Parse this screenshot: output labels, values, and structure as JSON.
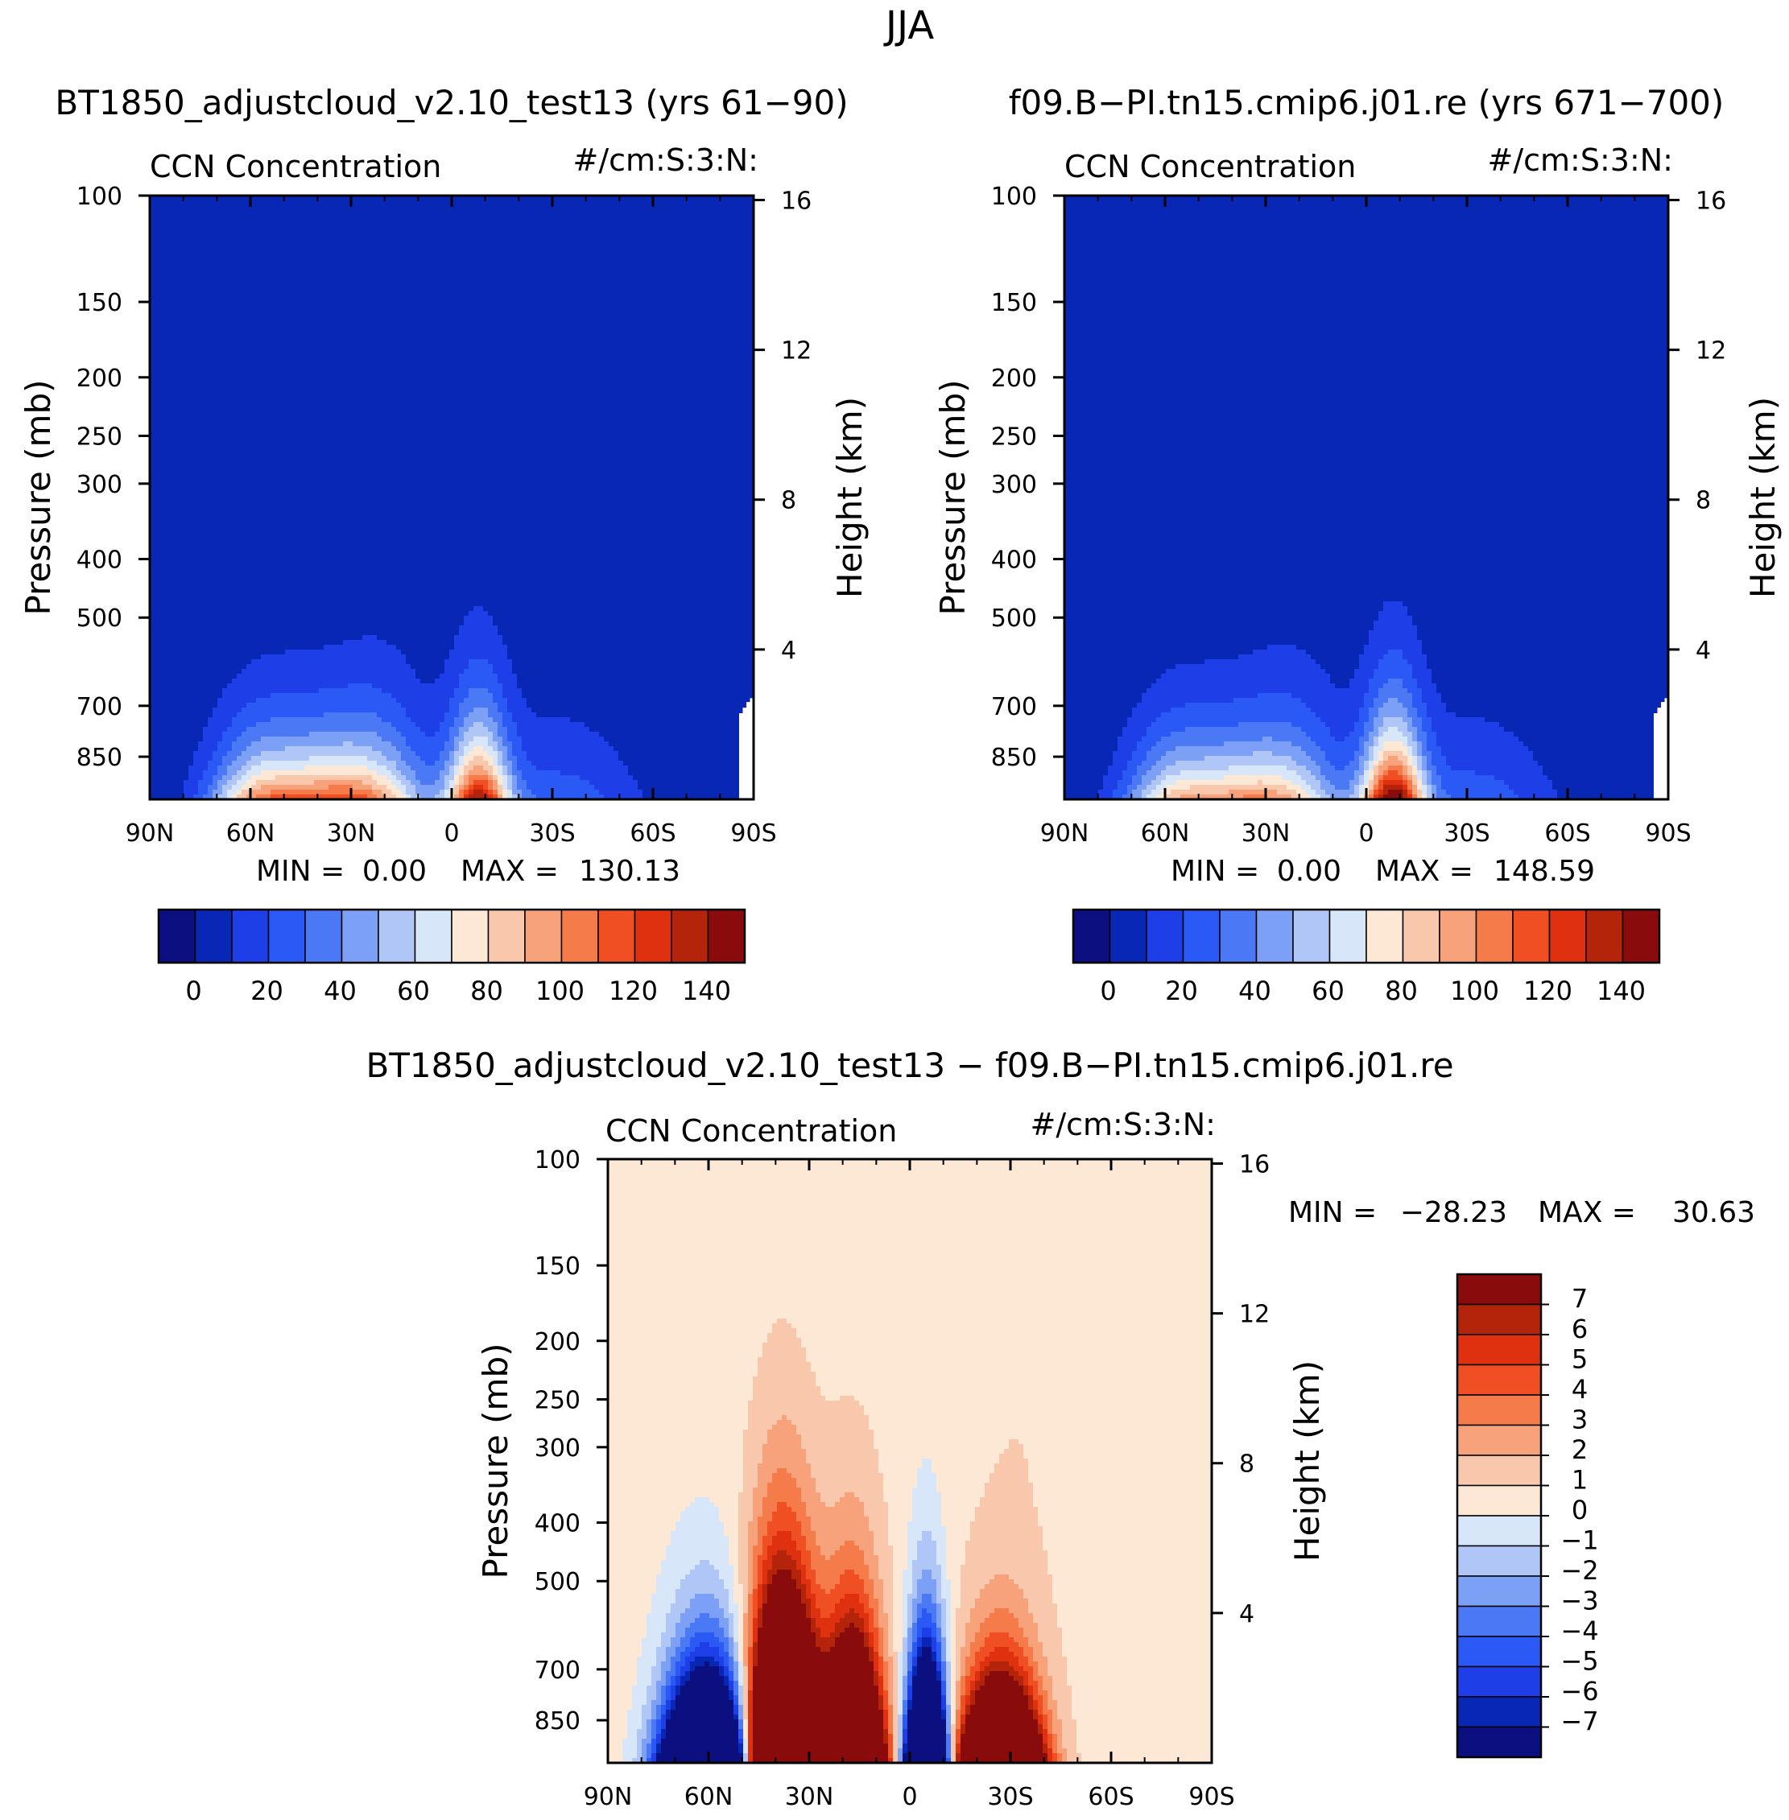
{
  "figure": {
    "title": "JJA"
  },
  "colors": {
    "seq_palette": [
      "#0b0f80",
      "#0727b4",
      "#1e3ee8",
      "#2b59f5",
      "#4b79f6",
      "#7da0f7",
      "#b0c6f7",
      "#d8e6f9",
      "#fde8d6",
      "#f9c7ab",
      "#f7a27a",
      "#f57c4a",
      "#f04e23",
      "#df3010",
      "#b3240b",
      "#8a0b0b"
    ],
    "diff_palette": [
      "#0b0f80",
      "#0727b4",
      "#1e3ee8",
      "#2b59f5",
      "#4b79f6",
      "#7da0f7",
      "#b0c6f7",
      "#d8e6f9",
      "#fde8d6",
      "#f9c7ab",
      "#f7a27a",
      "#f57c4a",
      "#f04e23",
      "#df3010",
      "#b3240b",
      "#8a0b0b"
    ]
  },
  "chart_data": [
    {
      "type": "heatmap",
      "panel": "top-left",
      "case_title": "BT1850_adjustcloud_v2.10_test13 (yrs 61−90)",
      "variable_label": "CCN Concentration",
      "units_label": "#/cm:S:3:N:",
      "ylabel": "Pressure (mb)",
      "y2label": "Height (km)",
      "x_ticks": [
        "90N",
        "60N",
        "30N",
        "0",
        "30S",
        "60S",
        "90S"
      ],
      "y_ticks": [
        "100",
        "150",
        "200",
        "250",
        "300",
        "400",
        "500",
        "700",
        "850"
      ],
      "y2_ticks": [
        "16",
        "12",
        "8",
        "4"
      ],
      "min_label": "MIN =",
      "min_value": "0.00",
      "max_label": "MAX =",
      "max_value": "130.13",
      "colorbar_labels": [
        "0",
        "20",
        "40",
        "60",
        "80",
        "100",
        "120",
        "140"
      ],
      "levels": [
        0,
        10,
        20,
        30,
        40,
        50,
        60,
        70,
        80,
        90,
        100,
        110,
        120,
        130,
        140
      ],
      "field_peaks": {
        "nh_peak_lat": 25,
        "nh_peak_value": 112,
        "sh_peak_lat": -8,
        "sh_peak_value": 130
      }
    },
    {
      "type": "heatmap",
      "panel": "top-right",
      "case_title": "f09.B−PI.tn15.cmip6.j01.re (yrs 671−700)",
      "variable_label": "CCN Concentration",
      "units_label": "#/cm:S:3:N:",
      "ylabel": "Pressure (mb)",
      "y2label": "Height (km)",
      "x_ticks": [
        "90N",
        "60N",
        "30N",
        "0",
        "30S",
        "60S",
        "90S"
      ],
      "y_ticks": [
        "100",
        "150",
        "200",
        "250",
        "300",
        "400",
        "500",
        "700",
        "850"
      ],
      "y2_ticks": [
        "16",
        "12",
        "8",
        "4"
      ],
      "min_label": "MIN =",
      "min_value": "0.00",
      "max_label": "MAX =",
      "max_value": "148.59",
      "colorbar_labels": [
        "0",
        "20",
        "40",
        "60",
        "80",
        "100",
        "120",
        "140"
      ],
      "levels": [
        0,
        10,
        20,
        30,
        40,
        50,
        60,
        70,
        80,
        90,
        100,
        110,
        120,
        130,
        140
      ],
      "field_peaks": {
        "nh_peak_lat": 25,
        "nh_peak_value": 95,
        "sh_peak_lat": -8,
        "sh_peak_value": 148
      }
    },
    {
      "type": "heatmap",
      "panel": "bottom-difference",
      "case_title": "BT1850_adjustcloud_v2.10_test13 − f09.B−PI.tn15.cmip6.j01.re",
      "variable_label": "CCN Concentration",
      "units_label": "#/cm:S:3:N:",
      "ylabel": "Pressure (mb)",
      "y2label": "Height (km)",
      "x_ticks": [
        "90N",
        "60N",
        "30N",
        "0",
        "30S",
        "60S",
        "90S"
      ],
      "y_ticks": [
        "100",
        "150",
        "200",
        "250",
        "300",
        "400",
        "500",
        "700",
        "850"
      ],
      "y2_ticks": [
        "16",
        "12",
        "8",
        "4"
      ],
      "min_label": "MIN =",
      "min_value": "−28.23",
      "max_label": "MAX =",
      "max_value": "30.63",
      "colorbar_labels": [
        "7",
        "6",
        "5",
        "4",
        "3",
        "2",
        "1",
        "0",
        "−1",
        "−2",
        "−3",
        "−4",
        "−5",
        "−6",
        "−7"
      ],
      "levels": [
        -7,
        -6,
        -5,
        -4,
        -3,
        -2,
        -1,
        0,
        1,
        2,
        3,
        4,
        5,
        6,
        7
      ]
    }
  ]
}
